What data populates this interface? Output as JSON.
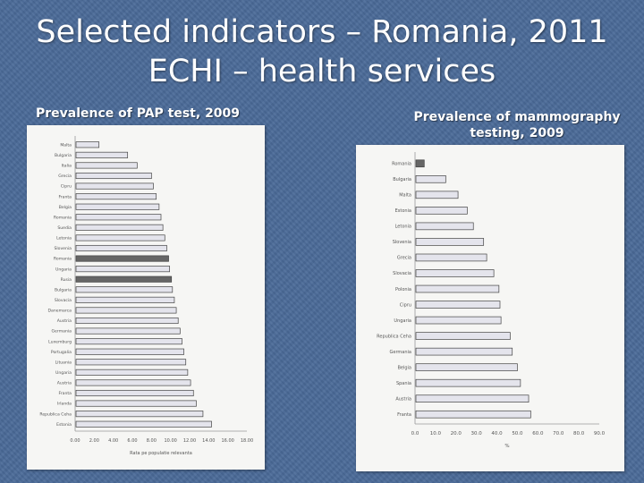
{
  "slide": {
    "title_line1": "Selected indicators – Romania, 2011",
    "title_line2": "ECHI – health services"
  },
  "captions": {
    "left": "Prevalence of PAP test, 2009",
    "right_line1": "Prevalence of mammography",
    "right_line2": "testing, 2009"
  },
  "colors": {
    "background": "#4a6a98",
    "bar_fill": "#e4e4ec",
    "bar_stroke": "#444444",
    "highlight_fill": "#666666"
  },
  "chart_data": [
    {
      "type": "bar",
      "orientation": "horizontal",
      "categories": [
        "Malta",
        "Bulgaria",
        "Italia",
        "Grecia",
        "Cipru",
        "Franta",
        "Belgia",
        "Romania",
        "Suedia",
        "Letonia",
        "Slovenia",
        "Romania",
        "Ungaria",
        "Rusia",
        "Bulgaria",
        "Slovacia",
        "Danemarca",
        "Austria",
        "Germania",
        "Luxemburg",
        "Portugalia",
        "Lituania",
        "Ungaria",
        "Austria",
        "Franta",
        "Irlanda",
        "Republica Ceha",
        "Estonia"
      ],
      "values": [
        2.5,
        5.5,
        6.5,
        8.0,
        8.2,
        8.5,
        8.8,
        9.0,
        9.2,
        9.4,
        9.6,
        9.8,
        9.9,
        10.1,
        10.2,
        10.4,
        10.6,
        10.8,
        11.0,
        11.2,
        11.4,
        11.6,
        11.8,
        12.1,
        12.4,
        12.7,
        13.4,
        14.3
      ],
      "highlight": [
        11,
        13
      ],
      "xticks": [
        "0.00",
        "2.00",
        "4.00",
        "6.00",
        "8.00",
        "10.00",
        "12.00",
        "14.00",
        "16.00",
        "18.00"
      ],
      "xlim": [
        0,
        18
      ],
      "xlabel": "Rata pe populatie relevanta"
    },
    {
      "type": "bar",
      "orientation": "horizontal",
      "categories": [
        "Romania",
        "Bulgaria",
        "Malta",
        "Estonia",
        "Letonia",
        "Slovenia",
        "Grecia",
        "Slovacia",
        "Polonia",
        "Cipru",
        "Ungaria",
        "Republica Ceha",
        "Germania",
        "Belgia",
        "Spania",
        "Austria",
        "Franta"
      ],
      "values": [
        4.5,
        15.0,
        21.0,
        25.5,
        28.5,
        33.5,
        35.0,
        38.5,
        41.0,
        41.5,
        42.0,
        46.5,
        47.5,
        50.0,
        51.5,
        55.5,
        56.5
      ],
      "highlight": [
        0
      ],
      "xticks": [
        "0.0",
        "10.0",
        "20.0",
        "30.0",
        "40.0",
        "50.0",
        "60.0",
        "70.0",
        "80.0",
        "90.0"
      ],
      "xlim": [
        0,
        90
      ],
      "xlabel": "%"
    }
  ]
}
